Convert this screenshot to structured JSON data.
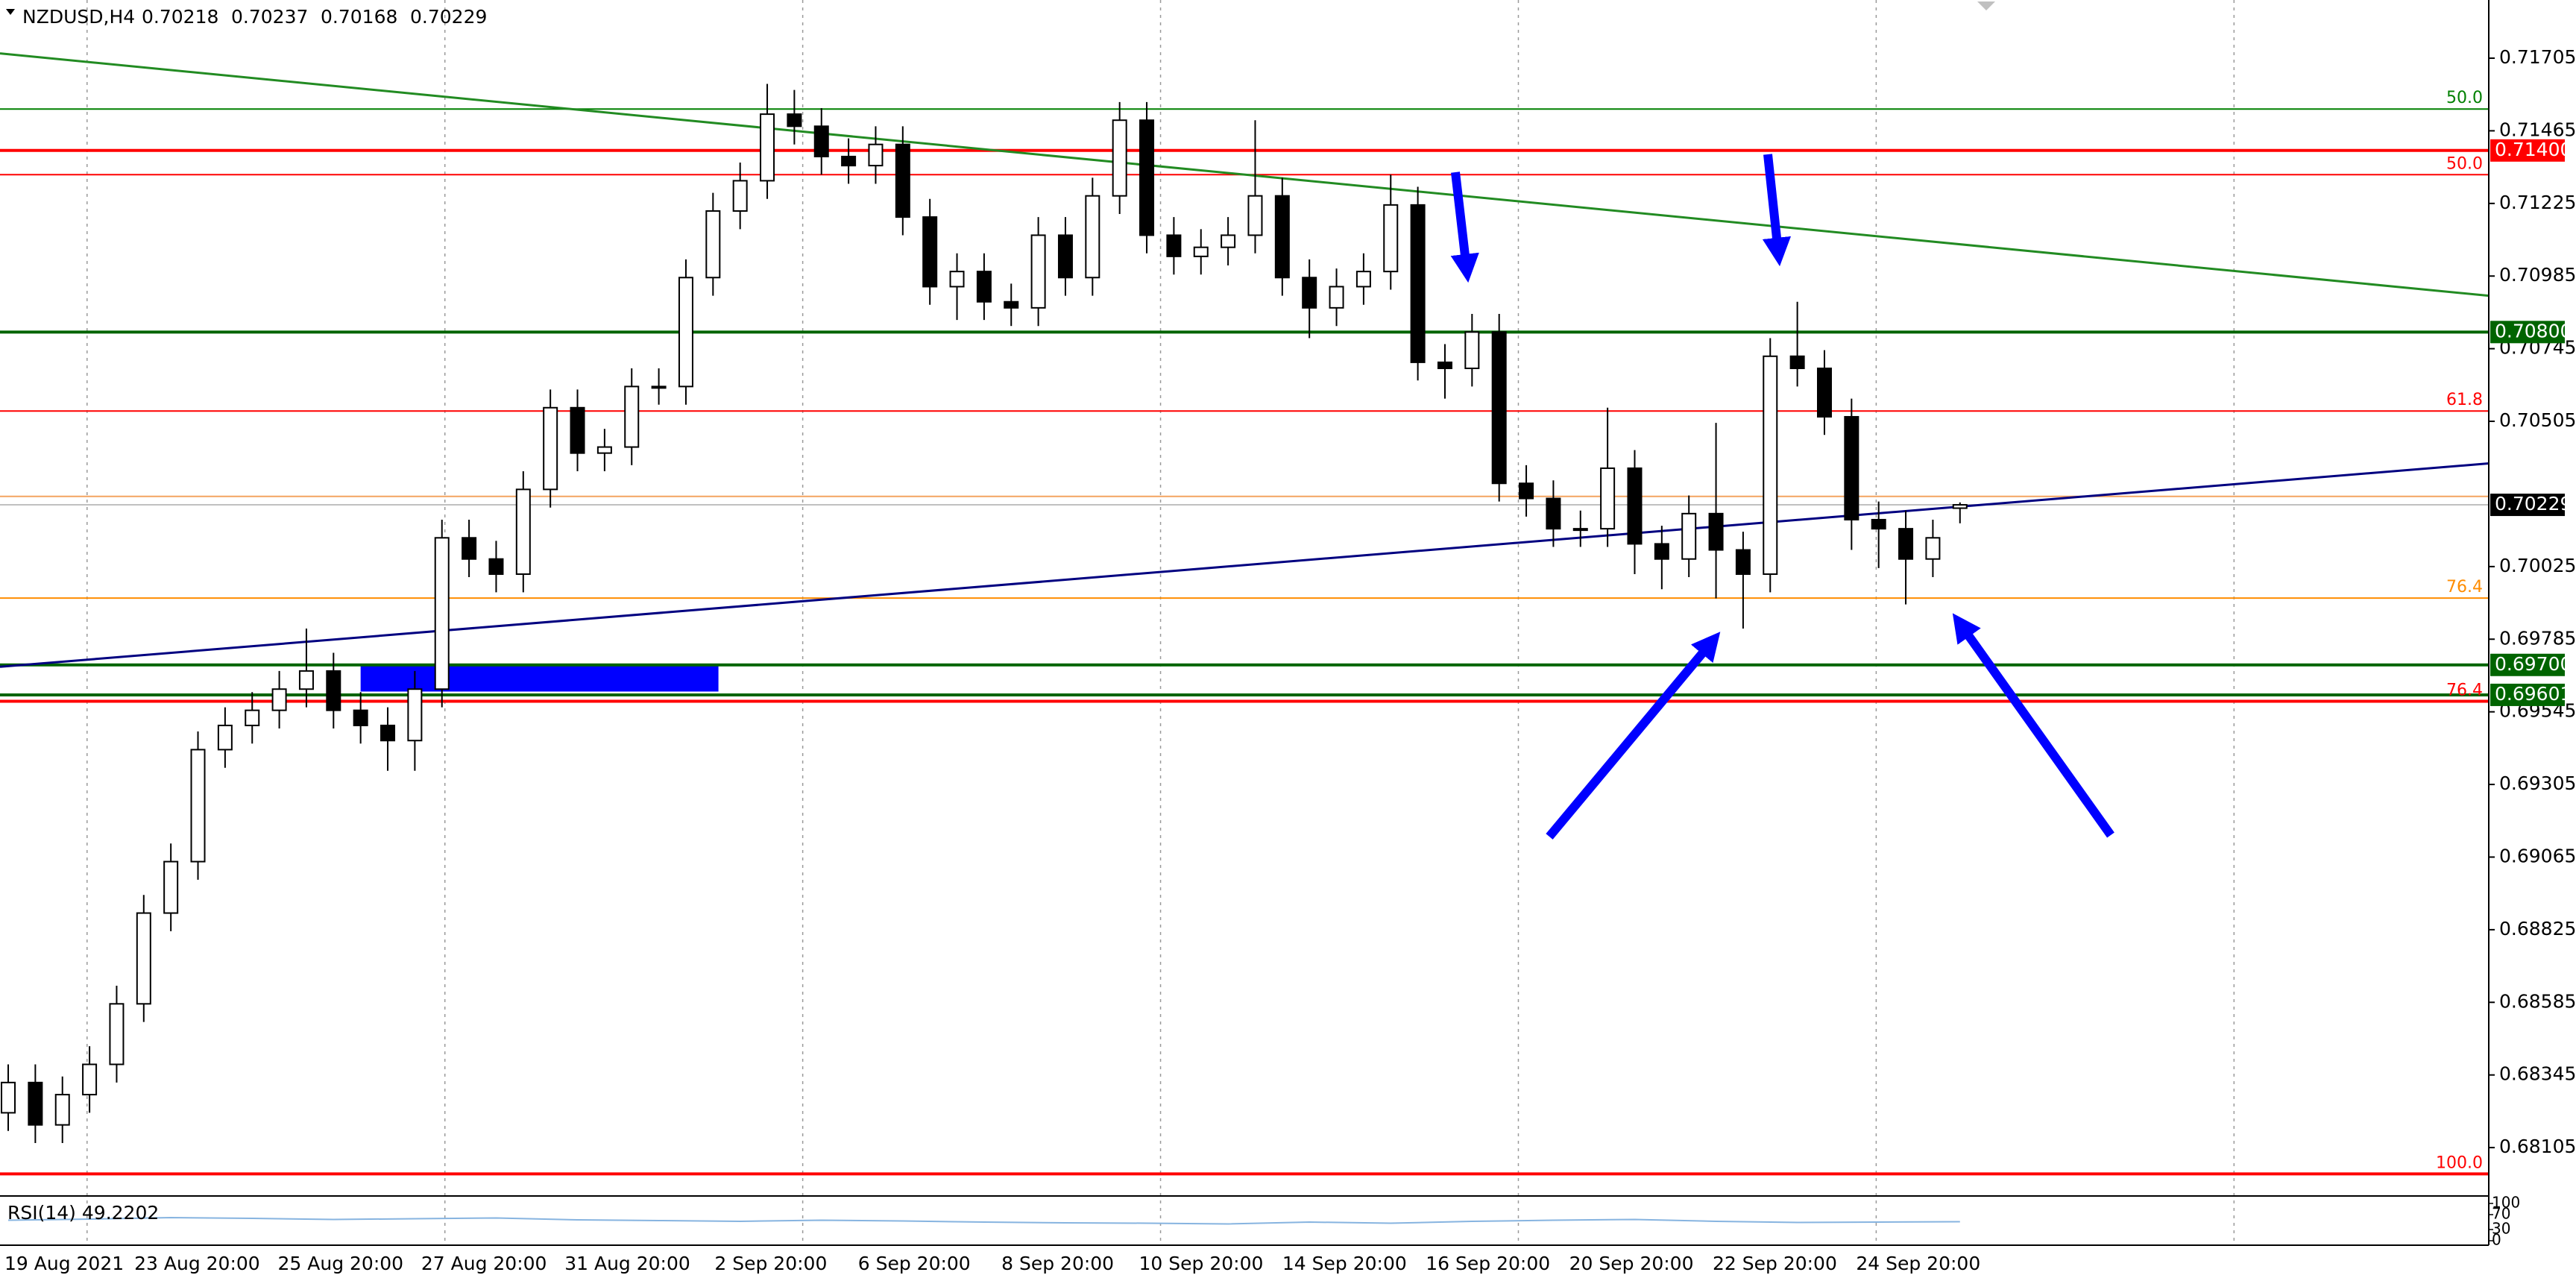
{
  "chart_data": {
    "type": "candlestick",
    "title": "NZDUSD,H4",
    "x_labels": [
      "19 Aug 2021",
      "23 Aug 20:00",
      "25 Aug 20:00",
      "27 Aug 20:00",
      "31 Aug 20:00",
      "2 Sep 20:00",
      "6 Sep 20:00",
      "8 Sep 20:00",
      "10 Sep 20:00",
      "14 Sep 20:00",
      "16 Sep 20:00",
      "20 Sep 20:00",
      "22 Sep 20:00",
      "24 Sep 20:00"
    ],
    "open": [
      0.6822,
      0.6832,
      0.6818,
      0.6828,
      0.6838,
      0.6858,
      0.6888,
      0.6905,
      0.6942,
      0.695,
      0.6955,
      0.6962,
      0.6968,
      0.6955,
      0.695,
      0.6945,
      0.6962,
      0.7012,
      0.7005,
      0.7,
      0.7028,
      0.7055,
      0.704,
      0.7042,
      0.7062,
      0.7062,
      0.7098,
      0.712,
      0.713,
      0.7152,
      0.7148,
      0.7138,
      0.7135,
      0.7142,
      0.7118,
      0.7095,
      0.71,
      0.709,
      0.7088,
      0.7112,
      0.7098,
      0.7125,
      0.715,
      0.7112,
      0.7105,
      0.7108,
      0.7112,
      0.7125,
      0.7098,
      0.7088,
      0.7095,
      0.71,
      0.7122,
      0.707,
      0.7068,
      0.708,
      0.703,
      0.7025,
      0.7015,
      0.7015,
      0.7035,
      0.701,
      0.7005,
      0.702,
      0.7008,
      0.7,
      0.7072,
      0.7068,
      0.7052,
      0.7018,
      0.7015,
      0.7005,
      0.70218
    ],
    "high": [
      0.6838,
      0.6838,
      0.6834,
      0.6844,
      0.6864,
      0.6894,
      0.6911,
      0.6948,
      0.6956,
      0.6961,
      0.6968,
      0.6982,
      0.6974,
      0.6961,
      0.6956,
      0.6968,
      0.7018,
      0.7018,
      0.7011,
      0.7034,
      0.7061,
      0.7061,
      0.7048,
      0.7068,
      0.7068,
      0.7104,
      0.7126,
      0.7136,
      0.7162,
      0.716,
      0.7154,
      0.7144,
      0.7148,
      0.7148,
      0.7124,
      0.7106,
      0.7106,
      0.7096,
      0.7118,
      0.7118,
      0.7131,
      0.7156,
      0.7156,
      0.7118,
      0.7114,
      0.7118,
      0.715,
      0.7131,
      0.7104,
      0.7101,
      0.7106,
      0.7132,
      0.7128,
      0.7076,
      0.7086,
      0.7086,
      0.7036,
      0.7031,
      0.7021,
      0.7055,
      0.7041,
      0.7016,
      0.7026,
      0.705,
      0.7014,
      0.7078,
      0.709,
      0.7074,
      0.7058,
      0.7024,
      0.7021,
      0.7018,
      0.70237
    ],
    "low": [
      0.6816,
      0.6812,
      0.6812,
      0.6822,
      0.6832,
      0.6852,
      0.6882,
      0.6899,
      0.6936,
      0.6944,
      0.6949,
      0.6956,
      0.6949,
      0.6944,
      0.6935,
      0.6935,
      0.6956,
      0.6999,
      0.6994,
      0.6994,
      0.7022,
      0.7034,
      0.7034,
      0.7036,
      0.7056,
      0.7056,
      0.7092,
      0.7114,
      0.7124,
      0.7142,
      0.7132,
      0.7129,
      0.7129,
      0.7112,
      0.7089,
      0.7084,
      0.7084,
      0.7082,
      0.7082,
      0.7092,
      0.7092,
      0.7119,
      0.7106,
      0.7099,
      0.7099,
      0.7102,
      0.7106,
      0.7092,
      0.7078,
      0.7082,
      0.7089,
      0.7094,
      0.7064,
      0.7058,
      0.7062,
      0.7024,
      0.7019,
      0.7009,
      0.7009,
      0.7009,
      0.7,
      0.6995,
      0.6999,
      0.6992,
      0.6982,
      0.6994,
      0.7062,
      0.7046,
      0.7008,
      0.7002,
      0.699,
      0.6999,
      0.70168
    ],
    "close": [
      0.6832,
      0.6818,
      0.6828,
      0.6838,
      0.6858,
      0.6888,
      0.6905,
      0.6942,
      0.695,
      0.6955,
      0.6962,
      0.6968,
      0.6955,
      0.695,
      0.6945,
      0.6962,
      0.7012,
      0.7005,
      0.7,
      0.7028,
      0.7055,
      0.704,
      0.7042,
      0.7062,
      0.7062,
      0.7098,
      0.712,
      0.713,
      0.7152,
      0.7148,
      0.7138,
      0.7135,
      0.7142,
      0.7118,
      0.7095,
      0.71,
      0.709,
      0.7088,
      0.7112,
      0.7098,
      0.7125,
      0.715,
      0.7112,
      0.7105,
      0.7108,
      0.7112,
      0.7125,
      0.7098,
      0.7088,
      0.7095,
      0.71,
      0.7122,
      0.707,
      0.7068,
      0.708,
      0.703,
      0.7025,
      0.7015,
      0.7015,
      0.7035,
      0.701,
      0.7005,
      0.702,
      0.7008,
      0.7,
      0.7072,
      0.7068,
      0.7052,
      0.7018,
      0.7015,
      0.7005,
      0.7012,
      0.70229
    ],
    "ylim": [
      0.6795,
      0.7188
    ],
    "yticks": [
      0.71705,
      0.71465,
      0.71225,
      0.70985,
      0.70745,
      0.70505,
      0.70025,
      0.69785,
      0.69545,
      0.69305,
      0.69065,
      0.68825,
      0.68585,
      0.68345,
      0.68105
    ],
    "levels": [
      {
        "value": 0.71537,
        "color": "#008000",
        "width": 2,
        "tag": "50.0"
      },
      {
        "value": 0.714,
        "color": "#ff0000",
        "width": 4,
        "label": {
          "value": 0.714,
          "label": "0.71400"
        }
      },
      {
        "value": 0.7132,
        "color": "#ff0000",
        "width": 2,
        "tag": "50.0"
      },
      {
        "value": 0.708,
        "color": "#006400",
        "width": 4,
        "label": {
          "value": 0.708,
          "label": "0.70800"
        }
      },
      {
        "value": 0.70539,
        "color": "#ff0000",
        "width": 2,
        "tag": "61.8"
      },
      {
        "value": 0.70257,
        "color": "#f4a460",
        "width": 2
      },
      {
        "value": 0.70229,
        "color": "#c0c0c0",
        "width": 2,
        "label_color": "#000000",
        "label": {
          "value": 0.70229,
          "label": "0.70229"
        }
      },
      {
        "value": 0.69921,
        "color": "#ff8c00",
        "width": 2,
        "tag": "76.4"
      },
      {
        "value": 0.697,
        "color": "#006400",
        "width": 4,
        "label": {
          "value": 0.697,
          "label": "0.69700"
        }
      },
      {
        "value": 0.69601,
        "color": "#006400",
        "width": 4,
        "label": {
          "value": 0.69601,
          "label": "0.69601"
        }
      },
      {
        "value": 0.6958,
        "color": "#ff0000",
        "width": 4,
        "tag": "76.4"
      },
      {
        "value": 0.68018,
        "color": "#ff0000",
        "width": 4,
        "tag": "100.0"
      }
    ],
    "trendlines": [
      {
        "color": "#228b22",
        "points": [
          [
            0,
            0.71718
          ],
          [
            72,
            0.7109
          ]
        ]
      },
      {
        "color": "#000080",
        "points": [
          [
            0,
            0.69696
          ],
          [
            72,
            0.70223
          ]
        ]
      }
    ],
    "zone": {
      "color": "#0000ff",
      "x": [
        13,
        26.2
      ],
      "y": [
        0.69612,
        0.69704
      ]
    },
    "rsi": {
      "label": "RSI(14) 49.2202",
      "color": "#87b4e0",
      "ylim": [
        0,
        100
      ],
      "yticks": [
        {
          "value": 100,
          "label": "100"
        },
        70,
        30,
        0
      ],
      "values": [
        55,
        58,
        62,
        60,
        57,
        59,
        61,
        56,
        54,
        52,
        55,
        53,
        50,
        48,
        47,
        45,
        50,
        47,
        52,
        55,
        57,
        52,
        49,
        50,
        51
      ]
    }
  }
}
